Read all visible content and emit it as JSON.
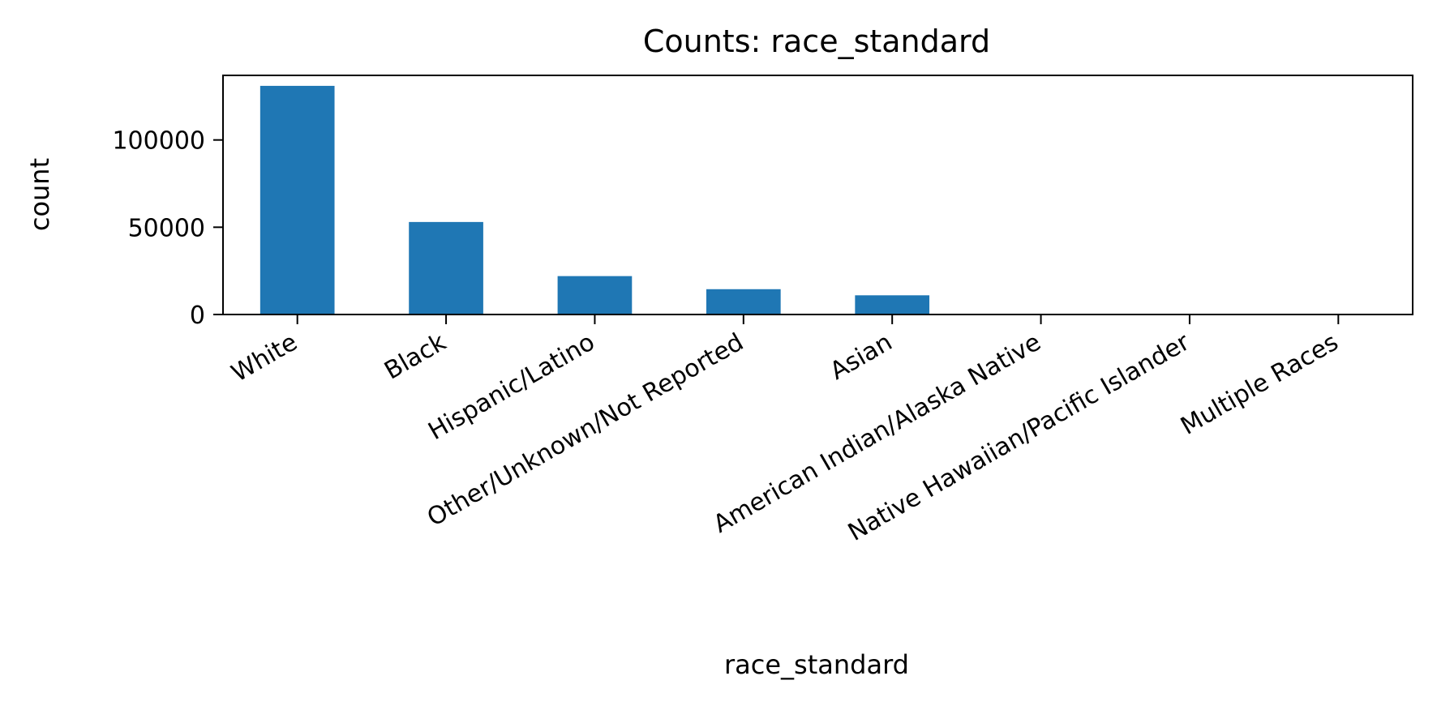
{
  "chart_data": {
    "type": "bar",
    "title": "Counts: race_standard",
    "xlabel": "race_standard",
    "ylabel": "count",
    "categories": [
      "White",
      "Black",
      "Hispanic/Latino",
      "Other/Unknown/Not Reported",
      "Asian",
      "American Indian/Alaska Native",
      "Native Hawaiian/Pacific Islander",
      "Multiple Races"
    ],
    "values": [
      131000,
      53000,
      22000,
      14500,
      11000,
      300,
      200,
      50
    ],
    "ylim": [
      0,
      137000
    ],
    "yticks": [
      0,
      50000,
      100000
    ],
    "ytick_labels": [
      "0",
      "50000",
      "100000"
    ],
    "bar_color": "#1f77b4",
    "grid": false,
    "legend": "none"
  }
}
